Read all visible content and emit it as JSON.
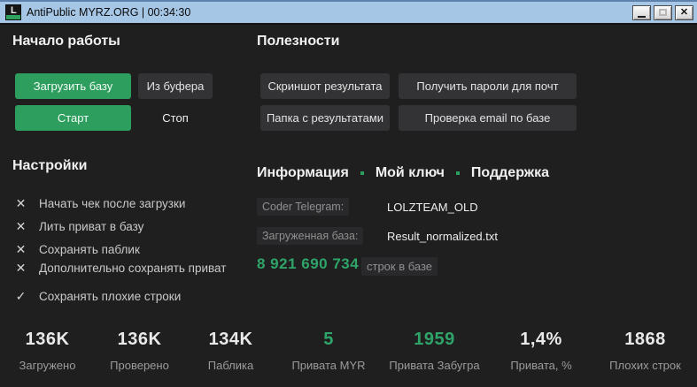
{
  "titlebar": {
    "title": "AntiPublic MYRZ.ORG | 00:34:30",
    "logo_letter": "L"
  },
  "icons": {
    "close-icon": "✕",
    "checkbox-unchecked-icon": "✕",
    "checkbox-checked-icon": "✓"
  },
  "colors": {
    "accent_green": "#2e9e5e",
    "titlebar_blue": "#a6c6e5",
    "background": "#1f1f20",
    "stat_white": "#e9e9e9",
    "stat_green": "#2fa469"
  },
  "start_section": {
    "title": "Начало работы",
    "load_button": "Загрузить базу",
    "clipboard_button": "Из буфера",
    "start_button": "Старт",
    "stop_button": "Стоп"
  },
  "utils_section": {
    "title": "Полезности",
    "screenshot_button": "Скриншот результата",
    "passwords_button": "Получить пароли для почт",
    "folder_button": "Папка с результатами",
    "email_check_button": "Проверка email по базе"
  },
  "settings_section": {
    "title": "Настройки",
    "options": [
      {
        "label": "Начать чек после загрузки",
        "checked": false
      },
      {
        "label": "Лить приват в базу",
        "checked": false
      },
      {
        "label": "Сохранять паблик",
        "checked": false
      },
      {
        "label": "Дополнительно сохранять приват",
        "checked": false
      },
      {
        "label": "Сохранять плохие строки",
        "checked": true
      }
    ]
  },
  "info_section": {
    "tabs": [
      {
        "label": "Информация"
      },
      {
        "label": "Мой ключ"
      },
      {
        "label": "Поддержка"
      }
    ],
    "coder_label": "Coder Telegram:",
    "coder_value": "LOLZTEAM_OLD",
    "base_label": "Загруженная база:",
    "base_value": "Result_normalized.txt",
    "db_rows_count": "8 921 690 734",
    "db_rows_suffix": "строк в базе"
  },
  "stats": [
    {
      "value": "136K",
      "label": "Загружено",
      "color": "#e9e9e9"
    },
    {
      "value": "136K",
      "label": "Проверено",
      "color": "#e9e9e9"
    },
    {
      "value": "134K",
      "label": "Паблика",
      "color": "#e9e9e9"
    },
    {
      "value": "5",
      "label": "Привата MYR",
      "color": "#2fa469"
    },
    {
      "value": "1959",
      "label": "Привата Забугра",
      "color": "#2fa469"
    },
    {
      "value": "1,4%",
      "label": "Привата, %",
      "color": "#e9e9e9"
    },
    {
      "value": "1868",
      "label": "Плохих строк",
      "color": "#e9e9e9"
    }
  ]
}
